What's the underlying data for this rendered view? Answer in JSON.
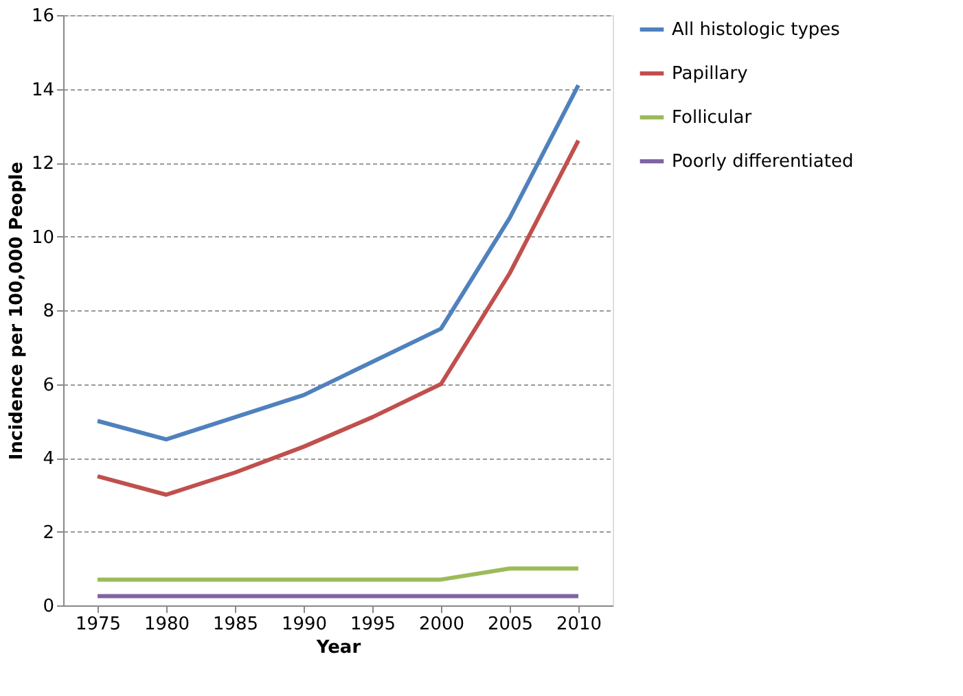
{
  "chart_data": {
    "type": "line",
    "xlabel": "Year",
    "ylabel": "Incidence per 100,000 People",
    "categories": [
      "1975",
      "1980",
      "1985",
      "1990",
      "1995",
      "2000",
      "2005",
      "2010"
    ],
    "series": [
      {
        "name": "All histologic types",
        "color": "#4f81bd",
        "values": [
          5.0,
          4.5,
          5.1,
          5.7,
          6.6,
          7.5,
          10.5,
          14.1
        ]
      },
      {
        "name": "Papillary",
        "color": "#c0504d",
        "values": [
          3.5,
          3.0,
          3.6,
          4.3,
          5.1,
          6.0,
          9.0,
          12.6
        ]
      },
      {
        "name": "Follicular",
        "color": "#9bbb59",
        "values": [
          0.7,
          0.7,
          0.7,
          0.7,
          0.7,
          0.7,
          1.0,
          1.0
        ]
      },
      {
        "name": "Poorly differentiated",
        "color": "#8064a2",
        "values": [
          0.25,
          0.25,
          0.25,
          0.25,
          0.25,
          0.25,
          0.25,
          0.25
        ]
      }
    ],
    "ylim": [
      0,
      16
    ],
    "yticks": [
      0,
      2,
      4,
      6,
      8,
      10,
      12,
      14,
      16
    ],
    "grid": "y",
    "legend": "right",
    "marker": "none",
    "line_style": "solid"
  }
}
